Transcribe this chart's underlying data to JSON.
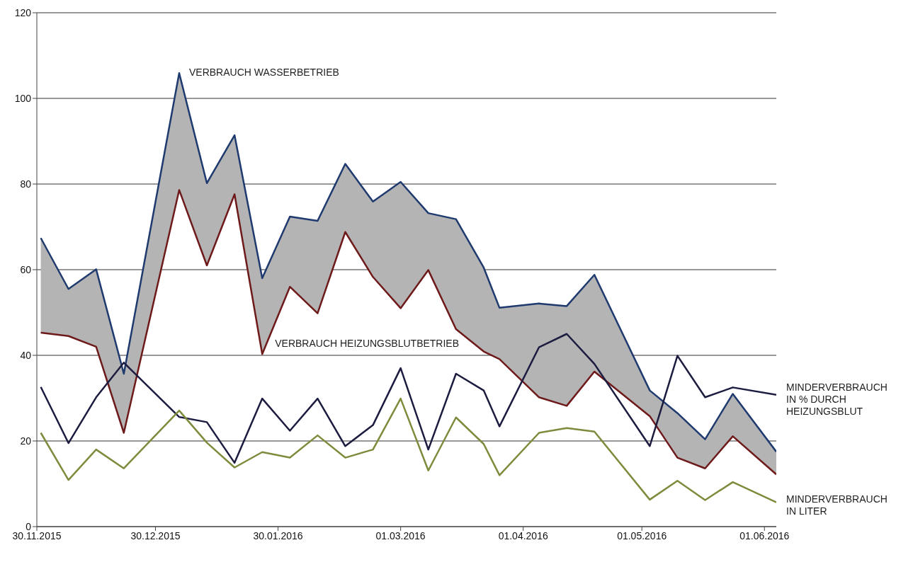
{
  "chart_data": {
    "type": "line",
    "x": [
      "2015-12-01",
      "2015-12-08",
      "2015-12-15",
      "2015-12-22",
      "2016-01-05",
      "2016-01-12",
      "2016-01-19",
      "2016-01-26",
      "2016-02-02",
      "2016-02-09",
      "2016-02-16",
      "2016-02-23",
      "2016-03-01",
      "2016-03-08",
      "2016-03-15",
      "2016-03-22",
      "2016-03-26",
      "2016-04-05",
      "2016-04-12",
      "2016-04-19",
      "2016-05-03",
      "2016-05-10",
      "2016-05-17",
      "2016-05-24",
      "2016-06-04"
    ],
    "series": [
      {
        "name": "VERBRAUCH WASSERBETRIEB",
        "color": "#1f3a6e",
        "values": [
          67.4,
          55.5,
          60.1,
          35.7,
          105.9,
          80.2,
          91.4,
          58,
          72.4,
          71.4,
          84.7,
          75.9,
          80.5,
          73.2,
          71.8,
          60.5,
          51.1,
          52.1,
          51.5,
          58.8,
          31.8,
          26.5,
          20.4,
          31,
          17.5
        ],
        "lower": [
          45.3,
          44.5,
          42,
          21.9,
          78.6,
          61,
          77.6,
          40.3,
          56,
          49.8,
          68.8,
          58.3,
          51,
          59.9,
          46.1,
          40.9,
          39.1,
          30.2,
          28.2,
          36.2,
          25.8,
          16.1,
          13.6,
          21.1,
          12.2
        ],
        "upper": [
          67.4,
          55.5,
          60.1,
          35.7,
          105.9,
          80.2,
          91.4,
          58,
          72.4,
          71.4,
          84.7,
          75.9,
          80.5,
          73.2,
          71.8,
          60.5,
          51.1,
          52.1,
          51.5,
          58.8,
          31.8,
          26.5,
          20.4,
          31,
          17.5
        ]
      },
      {
        "name": "VERBRAUCH HEIZUNGSBLUTBETRIEB",
        "color": "#6e1a1a",
        "values": [
          45.3,
          44.5,
          42,
          21.9,
          78.6,
          61,
          77.6,
          40.3,
          56,
          49.8,
          68.8,
          58.3,
          51,
          59.9,
          46.1,
          40.9,
          39.1,
          30.2,
          28.2,
          36.2,
          25.8,
          16.1,
          13.6,
          21.1,
          12.2
        ]
      },
      {
        "name": "MINDERVERBRAUCH IN % DURCH HEIZUNGSBLUT",
        "color": "#1c1c40",
        "values": [
          32.6,
          19.5,
          30.2,
          38.3,
          25.6,
          24.4,
          14.9,
          29.9,
          22.4,
          29.9,
          18.8,
          23.7,
          37,
          18,
          35.7,
          31.8,
          23.4,
          41.9,
          45,
          38,
          18.8,
          39.9,
          30.2,
          32.5,
          30.8
        ]
      },
      {
        "name": "MINDERVERBRAUCH IN LITER",
        "color": "#7d8c3c",
        "values": [
          21.9,
          10.9,
          18,
          13.6,
          27.1,
          19.6,
          13.8,
          17.4,
          16.1,
          21.3,
          16.1,
          18,
          29.9,
          13.1,
          25.5,
          19.3,
          12,
          21.9,
          23,
          22.2,
          6.3,
          10.7,
          6.2,
          10.4,
          5.7
        ]
      }
    ],
    "xlim": [
      "2015-11-30",
      "2016-06-04"
    ],
    "xticks": [
      {
        "value": "2015-11-30",
        "label": "30.11.2015"
      },
      {
        "value": "2015-12-30",
        "label": "30.12.2015"
      },
      {
        "value": "2016-01-30",
        "label": "30.01.2016"
      },
      {
        "value": "2016-03-01",
        "label": "01.03.2016"
      },
      {
        "value": "2016-04-01",
        "label": "01.04.2016"
      },
      {
        "value": "2016-05-01",
        "label": "01.05.2016"
      },
      {
        "value": "2016-06-01",
        "label": "01.06.2016"
      }
    ],
    "ylim": [
      0,
      120
    ],
    "yticks": [
      0,
      20,
      40,
      60,
      80,
      100,
      120
    ],
    "grid": "y",
    "legend": false,
    "marker": "none",
    "line_style": "solid"
  }
}
